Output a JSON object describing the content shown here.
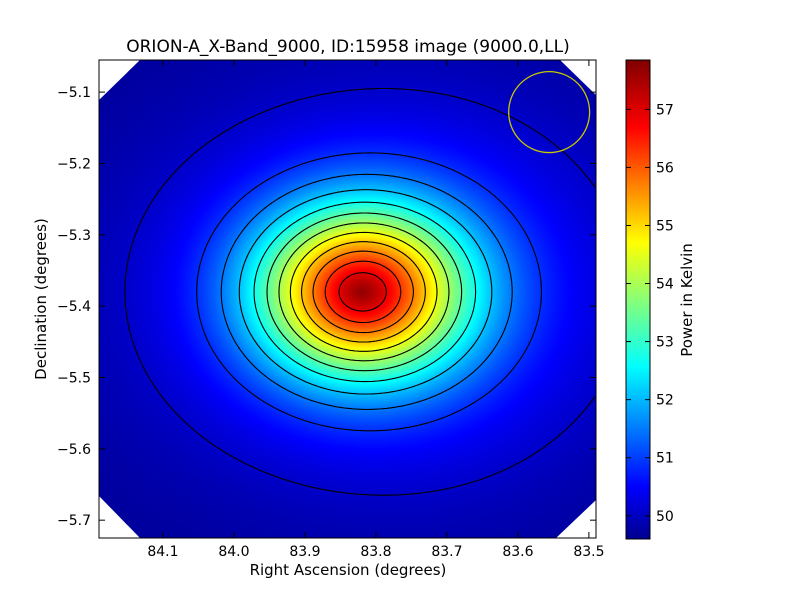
{
  "chart_data": {
    "type": "heatmap",
    "title": "ORION-A_X-Band_9000, ID:15958 image (9000.0,LL)",
    "xlabel": "Right Ascension (degrees)",
    "ylabel": "Declination (degrees)",
    "colorbar_label": "Power in Kelvin",
    "colormap": "jet",
    "xlim": [
      84.19,
      83.49
    ],
    "ylim": [
      -5.725,
      -5.055
    ],
    "x_ticks": [
      84.1,
      84.0,
      83.9,
      83.8,
      83.7,
      83.6,
      83.5
    ],
    "x_tick_labels": [
      "84.1",
      "84.0",
      "83.9",
      "83.8",
      "83.7",
      "83.6",
      "83.5"
    ],
    "y_ticks": [
      -5.1,
      -5.2,
      -5.3,
      -5.4,
      -5.5,
      -5.6,
      -5.7
    ],
    "y_tick_labels": [
      "−5.1",
      "−5.2",
      "−5.3",
      "−5.4",
      "−5.5",
      "−5.6",
      "−5.7"
    ],
    "colorbar_range": [
      49.6,
      57.85
    ],
    "colorbar_ticks": [
      50,
      51,
      52,
      53,
      54,
      55,
      56,
      57
    ],
    "colorbar_tick_labels": [
      "50",
      "51",
      "52",
      "53",
      "54",
      "55",
      "56",
      "57"
    ],
    "peak": {
      "ra": 83.82,
      "dec": -5.38,
      "value": 57.8
    },
    "background_level": 49.7,
    "beam_circle": {
      "ra": 83.556,
      "dec": -5.128,
      "radius_deg": 0.057,
      "color": "#c8c800"
    },
    "contour_levels": [
      50.2,
      51.0,
      51.6,
      52.2,
      52.8,
      53.4,
      54.0,
      54.6,
      55.2,
      55.8,
      56.4,
      57.0
    ],
    "grid": false
  }
}
